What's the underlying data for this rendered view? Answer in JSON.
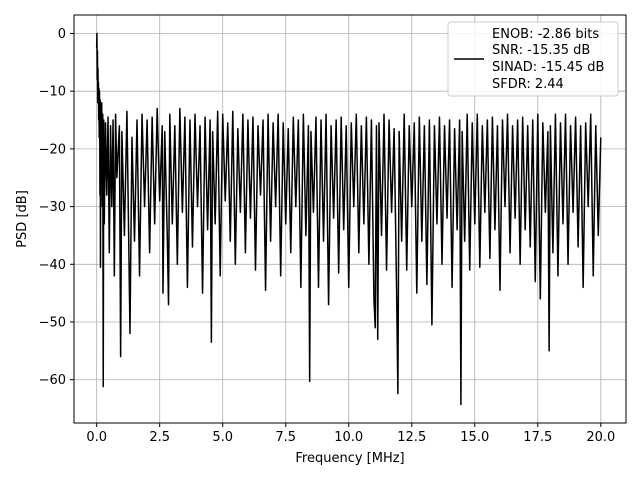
{
  "chart_data": {
    "type": "line",
    "xlabel": "Frequency [MHz]",
    "ylabel": "PSD [dB]",
    "xlim": [
      -0.9,
      21.0
    ],
    "ylim": [
      -67.5,
      3.2
    ],
    "xticks": [
      0.0,
      2.5,
      5.0,
      7.5,
      10.0,
      12.5,
      15.0,
      17.5,
      20.0
    ],
    "xtick_labels": [
      "0.0",
      "2.5",
      "5.0",
      "7.5",
      "10.0",
      "12.5",
      "15.0",
      "17.5",
      "20.0"
    ],
    "yticks": [
      0,
      -10,
      -20,
      -30,
      -40,
      -50,
      -60
    ],
    "ytick_labels": [
      "0",
      "−10",
      "−20",
      "−30",
      "−40",
      "−50",
      "−60"
    ],
    "grid": true,
    "legend_position": "top-right",
    "series": [
      {
        "color": "#000000",
        "legend_lines": [
          "ENOB: -2.86 bits",
          "SNR: -15.35 dB",
          "SINAD: -15.45 dB",
          "SFDR: 2.44"
        ],
        "points": [
          [
            0.0,
            -2.5
          ],
          [
            0.01,
            0.0
          ],
          [
            0.02,
            -8.0
          ],
          [
            0.03,
            -3.0
          ],
          [
            0.04,
            -12.0
          ],
          [
            0.05,
            -6.0
          ],
          [
            0.06,
            -11.0
          ],
          [
            0.07,
            -8.5
          ],
          [
            0.08,
            -15.0
          ],
          [
            0.09,
            -9.5
          ],
          [
            0.1,
            -18.0
          ],
          [
            0.11,
            -10.0
          ],
          [
            0.12,
            -14.0
          ],
          [
            0.13,
            -28.0
          ],
          [
            0.14,
            -11.5
          ],
          [
            0.15,
            -40.5
          ],
          [
            0.16,
            -13.0
          ],
          [
            0.18,
            -22.0
          ],
          [
            0.2,
            -12.0
          ],
          [
            0.22,
            -30.0
          ],
          [
            0.24,
            -14.0
          ],
          [
            0.26,
            -61.2
          ],
          [
            0.28,
            -15.0
          ],
          [
            0.3,
            -33.0
          ],
          [
            0.35,
            -15.5
          ],
          [
            0.4,
            -28.0
          ],
          [
            0.45,
            -14.5
          ],
          [
            0.5,
            -38.0
          ],
          [
            0.55,
            -16.0
          ],
          [
            0.6,
            -30.0
          ],
          [
            0.65,
            -15.0
          ],
          [
            0.7,
            -42.0
          ],
          [
            0.75,
            -14.0
          ],
          [
            0.8,
            -25.0
          ],
          [
            0.9,
            -16.0
          ],
          [
            0.95,
            -56.0
          ],
          [
            1.0,
            -17.0
          ],
          [
            1.1,
            -35.0
          ],
          [
            1.2,
            -13.5
          ],
          [
            1.3,
            -45.0
          ],
          [
            1.32,
            -52.0
          ],
          [
            1.4,
            -18.0
          ],
          [
            1.5,
            -36.0
          ],
          [
            1.6,
            -15.0
          ],
          [
            1.7,
            -42.0
          ],
          [
            1.8,
            -14.0
          ],
          [
            1.9,
            -30.0
          ],
          [
            2.0,
            -15.0
          ],
          [
            2.1,
            -38.0
          ],
          [
            2.2,
            -14.5
          ],
          [
            2.3,
            -33.0
          ],
          [
            2.4,
            -13.0
          ],
          [
            2.5,
            -29.0
          ],
          [
            2.6,
            -16.0
          ],
          [
            2.63,
            -45.0
          ],
          [
            2.7,
            -17.0
          ],
          [
            2.8,
            -35.0
          ],
          [
            2.85,
            -47.0
          ],
          [
            2.9,
            -14.0
          ],
          [
            3.0,
            -33.0
          ],
          [
            3.1,
            -16.0
          ],
          [
            3.2,
            -40.0
          ],
          [
            3.3,
            -13.0
          ],
          [
            3.4,
            -31.0
          ],
          [
            3.5,
            -14.5
          ],
          [
            3.6,
            -44.0
          ],
          [
            3.7,
            -15.0
          ],
          [
            3.8,
            -37.0
          ],
          [
            3.9,
            -14.0
          ],
          [
            4.0,
            -30.0
          ],
          [
            4.1,
            -16.0
          ],
          [
            4.2,
            -45.0
          ],
          [
            4.3,
            -14.5
          ],
          [
            4.4,
            -34.0
          ],
          [
            4.5,
            -15.0
          ],
          [
            4.55,
            -53.5
          ],
          [
            4.6,
            -17.0
          ],
          [
            4.7,
            -33.0
          ],
          [
            4.8,
            -13.5
          ],
          [
            4.9,
            -42.0
          ],
          [
            5.0,
            -14.0
          ],
          [
            5.1,
            -29.0
          ],
          [
            5.2,
            -15.5
          ],
          [
            5.3,
            -36.0
          ],
          [
            5.4,
            -13.5
          ],
          [
            5.5,
            -40.0
          ],
          [
            5.6,
            -16.5
          ],
          [
            5.7,
            -31.0
          ],
          [
            5.8,
            -14.0
          ],
          [
            5.9,
            -38.0
          ],
          [
            6.0,
            -15.0
          ],
          [
            6.1,
            -32.0
          ],
          [
            6.2,
            -14.5
          ],
          [
            6.3,
            -41.0
          ],
          [
            6.4,
            -16.0
          ],
          [
            6.5,
            -28.0
          ],
          [
            6.6,
            -15.0
          ],
          [
            6.7,
            -44.5
          ],
          [
            6.8,
            -14.0
          ],
          [
            6.9,
            -36.0
          ],
          [
            7.0,
            -15.5
          ],
          [
            7.1,
            -30.0
          ],
          [
            7.2,
            -14.0
          ],
          [
            7.3,
            -42.0
          ],
          [
            7.4,
            -15.5
          ],
          [
            7.5,
            -33.0
          ],
          [
            7.6,
            -16.5
          ],
          [
            7.7,
            -38.0
          ],
          [
            7.8,
            -14.5
          ],
          [
            7.9,
            -30.0
          ],
          [
            8.0,
            -15.0
          ],
          [
            8.1,
            -44.0
          ],
          [
            8.2,
            -14.0
          ],
          [
            8.3,
            -35.0
          ],
          [
            8.4,
            -16.0
          ],
          [
            8.45,
            -60.3
          ],
          [
            8.5,
            -17.0
          ],
          [
            8.6,
            -31.0
          ],
          [
            8.7,
            -14.5
          ],
          [
            8.8,
            -44.0
          ],
          [
            8.9,
            -15.0
          ],
          [
            9.0,
            -36.0
          ],
          [
            9.1,
            -14.0
          ],
          [
            9.2,
            -47.0
          ],
          [
            9.3,
            -16.0
          ],
          [
            9.4,
            -32.0
          ],
          [
            9.5,
            -15.0
          ],
          [
            9.6,
            -41.5
          ],
          [
            9.7,
            -14.5
          ],
          [
            9.8,
            -34.0
          ],
          [
            9.9,
            -16.0
          ],
          [
            10.0,
            -44.0
          ],
          [
            10.1,
            -15.5
          ],
          [
            10.2,
            -30.0
          ],
          [
            10.3,
            -14.0
          ],
          [
            10.4,
            -38.0
          ],
          [
            10.5,
            -16.0
          ],
          [
            10.6,
            -33.0
          ],
          [
            10.7,
            -14.5
          ],
          [
            10.8,
            -40.0
          ],
          [
            10.9,
            -15.0
          ],
          [
            11.0,
            -46.0
          ],
          [
            11.05,
            -51.0
          ],
          [
            11.1,
            -16.0
          ],
          [
            11.15,
            -53.0
          ],
          [
            11.2,
            -15.5
          ],
          [
            11.3,
            -35.0
          ],
          [
            11.4,
            -14.0
          ],
          [
            11.5,
            -41.0
          ],
          [
            11.6,
            -15.0
          ],
          [
            11.7,
            -31.0
          ],
          [
            11.8,
            -16.5
          ],
          [
            11.9,
            -45.0
          ],
          [
            11.95,
            -62.4
          ],
          [
            12.0,
            -17.0
          ],
          [
            12.1,
            -36.0
          ],
          [
            12.2,
            -14.0
          ],
          [
            12.3,
            -41.0
          ],
          [
            12.4,
            -16.0
          ],
          [
            12.5,
            -30.0
          ],
          [
            12.6,
            -15.5
          ],
          [
            12.7,
            -45.0
          ],
          [
            12.8,
            -14.5
          ],
          [
            12.9,
            -36.0
          ],
          [
            13.0,
            -16.0
          ],
          [
            13.1,
            -43.5
          ],
          [
            13.2,
            -15.0
          ],
          [
            13.3,
            -50.5
          ],
          [
            13.4,
            -16.0
          ],
          [
            13.5,
            -33.0
          ],
          [
            13.6,
            -14.5
          ],
          [
            13.7,
            -40.0
          ],
          [
            13.8,
            -16.0
          ],
          [
            13.9,
            -32.0
          ],
          [
            14.0,
            -15.0
          ],
          [
            14.1,
            -44.0
          ],
          [
            14.2,
            -16.5
          ],
          [
            14.3,
            -34.0
          ],
          [
            14.4,
            -15.0
          ],
          [
            14.45,
            -64.3
          ],
          [
            14.5,
            -17.0
          ],
          [
            14.6,
            -36.0
          ],
          [
            14.7,
            -14.0
          ],
          [
            14.8,
            -41.0
          ],
          [
            14.9,
            -15.5
          ],
          [
            15.0,
            -33.0
          ],
          [
            15.1,
            -14.0
          ],
          [
            15.2,
            -40.5
          ],
          [
            15.3,
            -16.0
          ],
          [
            15.4,
            -31.0
          ],
          [
            15.5,
            -15.0
          ],
          [
            15.6,
            -39.0
          ],
          [
            15.7,
            -14.5
          ],
          [
            15.8,
            -34.0
          ],
          [
            15.9,
            -16.0
          ],
          [
            16.0,
            -44.5
          ],
          [
            16.1,
            -15.0
          ],
          [
            16.2,
            -30.0
          ],
          [
            16.3,
            -14.0
          ],
          [
            16.4,
            -38.0
          ],
          [
            16.5,
            -16.0
          ],
          [
            16.6,
            -32.0
          ],
          [
            16.7,
            -15.0
          ],
          [
            16.8,
            -40.0
          ],
          [
            16.9,
            -14.5
          ],
          [
            17.0,
            -34.0
          ],
          [
            17.1,
            -16.0
          ],
          [
            17.2,
            -37.0
          ],
          [
            17.3,
            -15.0
          ],
          [
            17.4,
            -43.0
          ],
          [
            17.5,
            -14.0
          ],
          [
            17.6,
            -46.0
          ],
          [
            17.7,
            -15.5
          ],
          [
            17.8,
            -31.0
          ],
          [
            17.9,
            -17.0
          ],
          [
            17.95,
            -55.0
          ],
          [
            18.0,
            -16.0
          ],
          [
            18.1,
            -38.0
          ],
          [
            18.2,
            -14.0
          ],
          [
            18.3,
            -42.0
          ],
          [
            18.4,
            -15.5
          ],
          [
            18.5,
            -33.0
          ],
          [
            18.6,
            -14.0
          ],
          [
            18.7,
            -40.0
          ],
          [
            18.8,
            -16.0
          ],
          [
            18.9,
            -31.0
          ],
          [
            19.0,
            -14.5
          ],
          [
            19.1,
            -37.0
          ],
          [
            19.2,
            -16.0
          ],
          [
            19.3,
            -44.0
          ],
          [
            19.4,
            -15.5
          ],
          [
            19.5,
            -30.0
          ],
          [
            19.6,
            -14.0
          ],
          [
            19.7,
            -42.0
          ],
          [
            19.8,
            -16.0
          ],
          [
            19.9,
            -35.0
          ],
          [
            20.0,
            -18.0
          ]
        ]
      }
    ]
  }
}
